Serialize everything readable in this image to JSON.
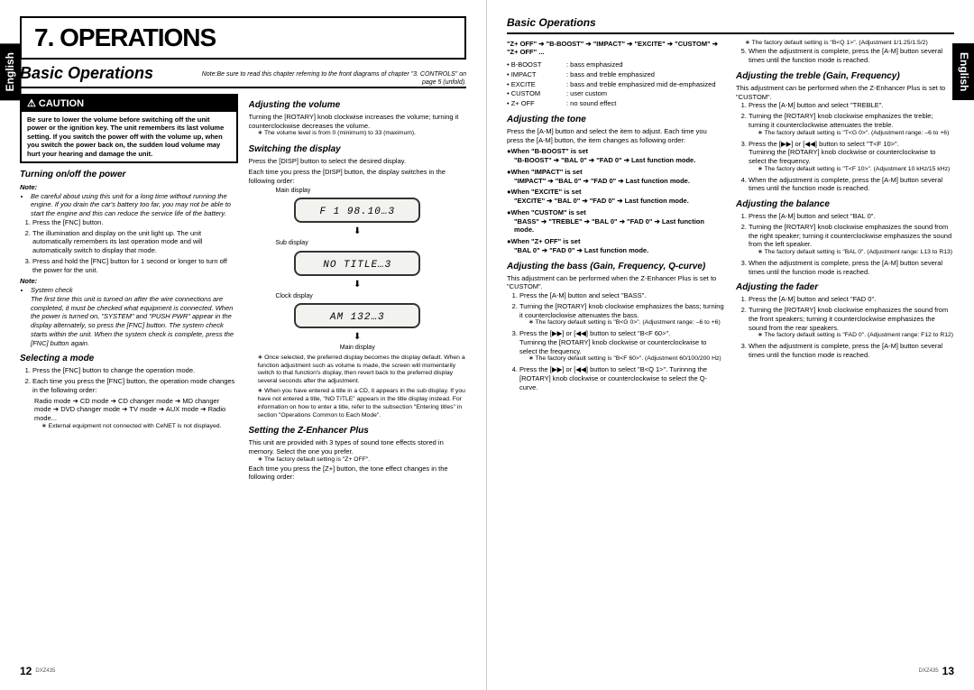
{
  "meta": {
    "model": "DXZ435",
    "page_left": "12",
    "page_right": "13",
    "lang": "English"
  },
  "chapter": "7. OPERATIONS",
  "section": "Basic Operations",
  "note_ref": "Note:Be sure to read this chapter referring to the front diagrams of chapter \"3. CONTROLS\" on page 5 (unfold).",
  "caution": {
    "title": "⚠ CAUTION",
    "body": "Be sure to lower the volume before switching off the unit power or the ignition key. The unit remembers its last volume setting. If you switch the power off with the volume up, when you switch the power back on, the sudden loud volume may hurt your hearing and damage the unit."
  },
  "power": {
    "title": "Turning on/off the power",
    "note1": "Be careful about using this unit for a long time without running the engine. If you drain the car's battery too far, you may not be able to start the engine and this can reduce the service life of the battery.",
    "s1": "Press the [FNC] button.",
    "s2": "The illumination and display on the unit light up. The unit automatically remembers its last operation mode and will automatically switch to display that mode.",
    "s3": "Press and hold the [FNC] button for 1 second or longer to turn off the power for the unit.",
    "syscheck_t": "System check",
    "syscheck": "The first time this unit is turned on after the wire connections are completed, it must be checked what equipment is connected. When the power is turned on, \"SYSTEM\" and \"PUSH PWR\" appear in the display alternately, so press the [FNC] button. The system check starts within the unit. When the system check is complete, press the [FNC] button again."
  },
  "mode": {
    "title": "Selecting a mode",
    "s1": "Press the [FNC] button to change the operation mode.",
    "s2": "Each time you press the [FNC] button, the operation mode changes in the following order:",
    "seq": "Radio mode ➔ CD mode ➔ CD changer mode ➔ MD changer mode ➔ DVD changer mode ➔ TV mode ➔ AUX mode ➔ Radio mode...",
    "star": "External equipment not connected with CeNET is not displayed."
  },
  "volume": {
    "title": "Adjusting the volume",
    "body": "Turning the [ROTARY] knob clockwise increases the volume; turning it counterclockwise decreases the volume.",
    "star": "The volume level is from 0 (minimum) to 33 (maximum)."
  },
  "display": {
    "title": "Switching the display",
    "s1": "Press the [DISP] button to select the desired display.",
    "s2": "Each time you press the [DISP] button, the display switches in the following order:",
    "lbl_main": "Main display",
    "lbl_sub": "Sub display",
    "lbl_clock": "Clock display",
    "lbl_main2": "Main display",
    "d1": "F 1  98.10…3",
    "d2": "NO TITLE…3",
    "d3": "AM   132…3",
    "star1": "Once selected, the preferred display becomes the display default. When a function adjustment such as volume is made, the screen will momentarily switch to that function's display, then revert back to the preferred display several seconds after the adjustment.",
    "star2": "When you have entered a title in a CD, it appears in the sub display. If you have not entered a title, \"NO TITLE\" appears in the title display instead. For information on how to enter a title, refer to the subsection \"Entering titles\" in section \"Operations Common to Each Mode\"."
  },
  "zplus": {
    "title": "Setting the Z-Enhancer Plus",
    "body": "This unit are provided with 3 types of sound tone effects stored in memory. Select the one you prefer.",
    "star": "The factory default setting is \"Z+ OFF\".",
    "body2": "Each time you press the [Z+] button, the tone effect changes in the following order:"
  },
  "right_top": {
    "seq": "\"Z+ OFF\" ➔ \"B-BOOST\" ➔ \"IMPACT\" ➔ \"EXCITE\" ➔ \"CUSTOM\" ➔ \"Z+ OFF\" ...",
    "rows": [
      [
        "• B-BOOST",
        ": bass emphasized"
      ],
      [
        "• IMPACT",
        ": bass and treble emphasized"
      ],
      [
        "• EXCITE",
        ": bass and treble emphasized mid de-emphasized"
      ],
      [
        "• CUSTOM",
        ": user custom"
      ],
      [
        "• Z+ OFF",
        ": no sound effect"
      ]
    ]
  },
  "tone": {
    "title": "Adjusting the tone",
    "body": "Press the [A-M] button and select the item to adjust. Each time you press the [A-M] button, the item changes as following order:",
    "items": [
      [
        "●When \"B-BOOST\" is set",
        "\"B-BOOST\" ➔ \"BAL 0\" ➔ \"FAD 0\" ➔ Last function mode."
      ],
      [
        "●When \"IMPACT\" is set",
        "\"IMPACT\" ➔ \"BAL 0\" ➔ \"FAD 0\" ➔ Last function mode."
      ],
      [
        "●When \"EXCITE\" is set",
        "\"EXCITE\" ➔ \"BAL 0\" ➔ \"FAD 0\" ➔ Last function mode."
      ],
      [
        "●When \"CUSTOM\" is set",
        "\"BASS\" ➔ \"TREBLE\" ➔ \"BAL 0\" ➔ \"FAD 0\" ➔ Last function mode."
      ],
      [
        "●When \"Z+ OFF\" is set",
        "\"BAL 0\" ➔ \"FAD 0\" ➔ Last function mode."
      ]
    ]
  },
  "bass": {
    "title": "Adjusting the bass (Gain, Frequency, Q-curve)",
    "intro": "This adjustment can be performed when the Z-Enhancer Plus is set to \"CUSTOM\".",
    "s1": "Press the [A-M] button and select \"BASS\".",
    "s2": "Turning the [ROTARY] knob clockwise emphasizes the bass; turning it counterclockwise attenuates the bass.",
    "s2star": "The factory default setting is \"B<G 0>\". (Adjustment range: –6 to +6)",
    "s3": "Press the [▶▶] or [◀◀] button to select \"B<F 60>\".",
    "s3b": "Turninng the [ROTARY] knob clockwise or counterclockwise to select the frequency.",
    "s3star": "The factory default setting is \"B<F 60>\". (Adjustment 60/100/200 Hz)",
    "s4": "Press the [▶▶] or [◀◀] button to select \"B<Q 1>\". Turinnng the [ROTARY] knob clockwise or counterclockwise to select the Q-curve.",
    "s4star": "The factory default setting is \"B<Q 1>\". (Adjustment 1/1.25/1.5/2)",
    "s5": "When the adjustment is complete, press the [A-M] button several times until the function mode is reached."
  },
  "treble": {
    "title": "Adjusting the treble (Gain, Frequency)",
    "intro": "This adjustment can be performed when the Z-Enhancer Plus is set to \"CUSTOM\".",
    "s1": "Press the [A-M] button and select \"TREBLE\".",
    "s2": "Turning the [ROTARY] knob clockwise emphasizes the treble; turning it counterclockwise attenuates the treble.",
    "s2star": "The factory default setting is \"T<G 0>\". (Adjustment range: –6 to +6)",
    "s3": "Press the [▶▶] or [◀◀] button to select \"T<F 10>\".",
    "s3b": "Turninng the [ROTARY] knob clockwise or counterclockwise to select the frequency.",
    "s3star": "The factory default setting is \"T<F 10>\". (Adjustment 10 kHz/15 kHz)",
    "s4": "When the adjustment is complete, press the [A-M] button several times until the function mode is reached."
  },
  "balance": {
    "title": "Adjusting the balance",
    "s1": "Press the [A-M] button and select \"BAL 0\".",
    "s2": "Turning the [ROTARY] knob clockwise emphasizes the sound from the right speaker; turning it counterclockwise emphasizes the sound from the left speaker.",
    "s2star": "The factory default setting is \"BAL 0\". (Adjustment range: L13 to R13)",
    "s3": "When the adjustment is complete, press the [A-M] button several times until the function mode is reached."
  },
  "fader": {
    "title": "Adjusting the fader",
    "s1": "Press the [A-M] button and select \"FAD 0\".",
    "s2": "Turning the [ROTARY] knob clockwise emphasizes the sound from the front speakers; turning it counterclockwise emphasizes the sound from the rear speakers.",
    "s2star": "The factory default setting is \"FAD 0\". (Adjustment range: F12 to R12)",
    "s3": "When the adjustment is complete, press the [A-M] button several times until the function mode is reached."
  }
}
